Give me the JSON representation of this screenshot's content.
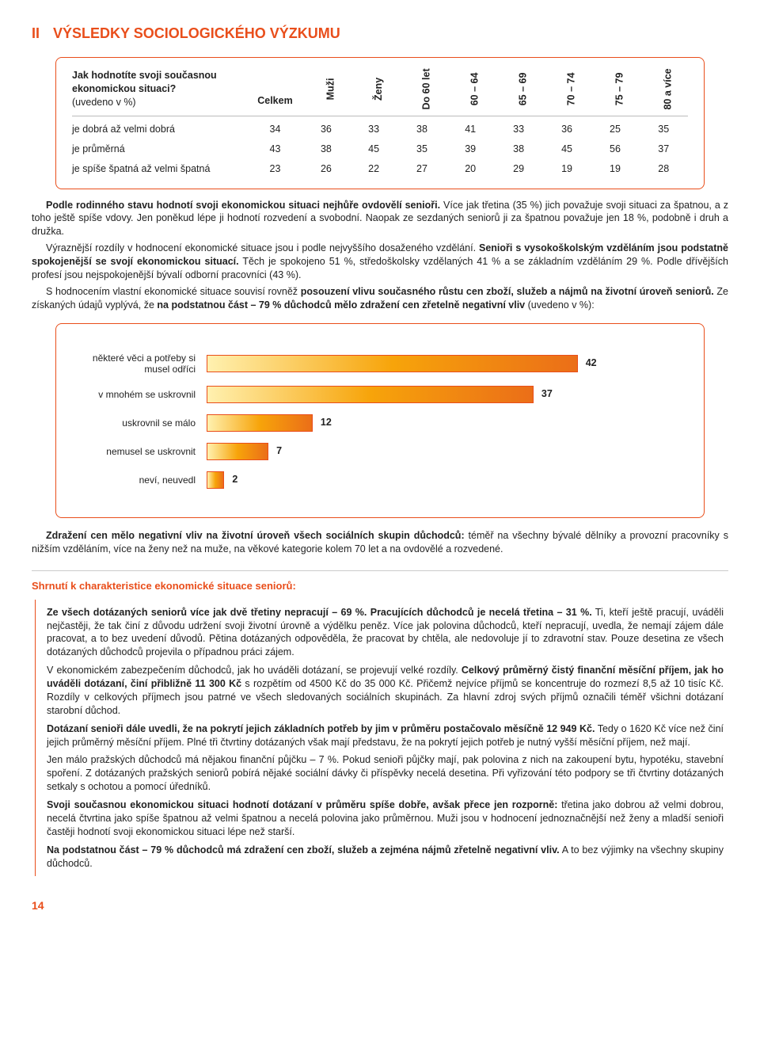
{
  "heading": {
    "roman": "II",
    "text": "VÝSLEDKY SOCIOLOGICKÉHO VÝZKUMU"
  },
  "table": {
    "question": "Jak hodnotíte svoji současnou ekonomickou situaci?",
    "subnote": "(uvedeno v %)",
    "cols": [
      "Celkem",
      "Muži",
      "Ženy",
      "Do 60 let",
      "60 – 64",
      "65 – 69",
      "70 – 74",
      "75 – 79",
      "80 a více"
    ],
    "rows": [
      {
        "label": "je dobrá až velmi dobrá",
        "vals": [
          34,
          36,
          33,
          38,
          41,
          33,
          36,
          25,
          35
        ]
      },
      {
        "label": "je průměrná",
        "vals": [
          43,
          38,
          45,
          35,
          39,
          38,
          45,
          56,
          37
        ]
      },
      {
        "label": "je spíše špatná až velmi špatná",
        "vals": [
          23,
          26,
          22,
          27,
          20,
          29,
          19,
          19,
          28
        ]
      }
    ]
  },
  "para1": {
    "lead_bold": "Podle rodinného stavu hodnotí svoji ekonomickou situaci nejhůře ovdovělí senioři.",
    "rest1": " Více jak třetina (35 %) jich považuje svoji situaci za špatnou, a z toho ještě spíše vdovy. Jen poněkud lépe ji hodnotí rozvedení a svobodní. Naopak ze sezdaných seniorů ji za špatnou považuje jen 18 %, podobně i druh a družka.",
    "line2a": "Výraznější rozdíly v hodnocení ekonomické situace jsou i podle nejvyššího dosaženého vzdělání. ",
    "line2_bold": "Senioři s vysokoškolským vzděláním jsou podstatně spokojenější se svojí ekonomickou situací.",
    "line2b": " Těch je spokojeno 51 %, středoškolsky vzdělaných 41 % a se základním vzděláním 29 %. Podle dřívějších profesí jsou nejspokojenější bývalí odborní pracovníci (43 %).",
    "line3a": "S hodnocením vlastní ekonomické situace souvisí rovněž ",
    "line3_bold": "posouzení vlivu současného růstu cen zboží, služeb a nájmů na životní úroveň seniorů.",
    "line3b": " Ze získaných údajů vyplývá, že ",
    "line3_bold2": "na podstatnou část – 79 % důchodců mělo zdražení cen zřetelně negativní vliv",
    "line3c": " (uvedeno v %):"
  },
  "chart": {
    "max": 50,
    "bar_gradient_from": "#fff1b0",
    "bar_gradient_mid": "#f7a40a",
    "bar_gradient_to": "#eb6e18",
    "items": [
      {
        "label": "některé věci a potřeby si musel odříci",
        "value": 42
      },
      {
        "label": "v mnohém se uskrovnil",
        "value": 37
      },
      {
        "label": "uskrovnil se málo",
        "value": 12
      },
      {
        "label": "nemusel se uskrovnit",
        "value": 7
      },
      {
        "label": "neví, neuvedl",
        "value": 2
      }
    ]
  },
  "para2": {
    "bold": "Zdražení cen mělo negativní vliv na životní úroveň všech sociálních skupin důchodců:",
    "rest": " téměř na všechny bývalé dělníky a provozní pracovníky s nižším vzděláním, více na ženy než na muže, na věkové kategorie kolem 70 let a na ovdovělé a rozvedené."
  },
  "summary": {
    "title": "Shrnutí k charakteristice ekonomické situace seniorů:",
    "p1_bold": "Ze všech dotázaných seniorů více jak dvě třetiny nepracují – 69 %. Pracujících důchodců je necelá třetina – 31 %.",
    "p1_rest": " Ti, kteří ještě pracují, uváděli nejčastěji, že tak činí z důvodu udržení svoji životní úrovně a výdělku peněz. Více jak polovina důchodců, kteří nepracují, uvedla, že nemají zájem dále pracovat, a to bez uvedení důvodů. Pětina dotázaných odpověděla, že pracovat by chtěla, ale nedovoluje jí to zdravotní stav. Pouze desetina ze všech dotázaných důchodců projevila o případnou práci zájem.",
    "p2_lead": "V ekonomickém zabezpečením důchodců, jak ho uváděli dotázaní, se projevují velké rozdíly. ",
    "p2_bold": "Celkový průměrný čistý finanční měsíční příjem, jak ho uváděli dotázaní, činí přibližně 11 300 Kč",
    "p2_rest": " s rozpětím od 4500 Kč do 35 000 Kč. Přičemž nejvíce příjmů se koncentruje do rozmezí 8,5 až 10 tisíc Kč. Rozdíly v celkových příjmech jsou patrné ve všech sledovaných sociálních skupinách. Za hlavní zdroj svých příjmů označili téměř všichni dotázaní starobní důchod.",
    "p3_bold": "Dotázaní senioři dále uvedli, že na pokrytí jejich základních potřeb by jim v průměru postačovalo měsíčně 12 949 Kč.",
    "p3_rest": " Tedy o 1620 Kč více než činí jejich průměrný měsíční příjem. Plné tři čtvrtiny dotázaných však mají představu, že na pokrytí jejich potřeb je nutný vyšší měsíční příjem, než mají.",
    "p4": "Jen málo pražských důchodců má nějakou finanční půjčku – 7 %. Pokud senioři půjčky mají, pak polovina z nich na zakoupení bytu, hypotéku, stavební spoření. Z dotázaných pražských seniorů pobírá nějaké sociální dávky či příspěvky necelá desetina. Při vyřizování této podpory se tři čtvrtiny dotázaných setkaly s ochotou a pomocí úředníků.",
    "p5_bold": "Svoji současnou ekonomickou situaci hodnotí dotázaní v průměru spíše dobře, avšak přece jen rozporně:",
    "p5_rest": " třetina jako dobrou až velmi dobrou, necelá čtvrtina jako spíše špatnou až velmi špatnou a necelá polovina jako průměrnou. Muži jsou v hodnocení jednoznačnější než ženy a mladší senioři častěji hodnotí svoji ekonomickou situaci lépe než starší.",
    "p6_bold": "Na podstatnou část – 79 % důchodců má zdražení cen zboží, služeb a zejména nájmů zřetelně negativní vliv.",
    "p6_rest": " A to bez výjimky na všechny skupiny důchodců."
  },
  "page_number": "14"
}
